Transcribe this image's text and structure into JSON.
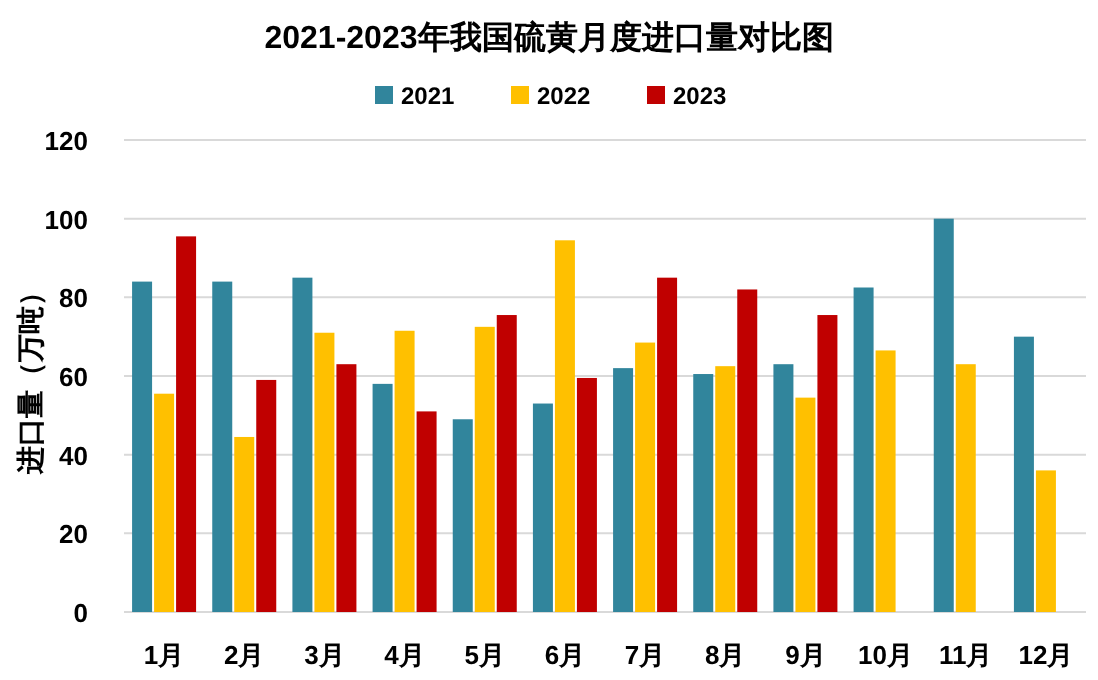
{
  "chart_data": {
    "type": "bar",
    "title": "2021-2023年我国硫黄月度进口量对比图",
    "ylabel": "进口量（万吨）",
    "categories": [
      "1月",
      "2月",
      "3月",
      "4月",
      "5月",
      "6月",
      "7月",
      "8月",
      "9月",
      "10月",
      "11月",
      "12月"
    ],
    "series": [
      {
        "name": "2021",
        "color": "#31859c",
        "values": [
          84,
          84,
          85,
          58,
          49,
          53,
          62,
          60.5,
          63,
          82.5,
          100,
          70
        ]
      },
      {
        "name": "2022",
        "color": "#ffc000",
        "values": [
          55.5,
          44.5,
          71,
          71.5,
          72.5,
          94.5,
          68.5,
          62.5,
          54.5,
          66.5,
          63,
          36
        ]
      },
      {
        "name": "2023",
        "color": "#c00000",
        "values": [
          95.5,
          59,
          63,
          51,
          75.5,
          59.5,
          85,
          82,
          75.5,
          null,
          null,
          null
        ]
      }
    ],
    "ylim": [
      0,
      120
    ],
    "yticks": [
      0,
      20,
      40,
      60,
      80,
      100,
      120
    ],
    "grid": "y",
    "legend": "top"
  }
}
